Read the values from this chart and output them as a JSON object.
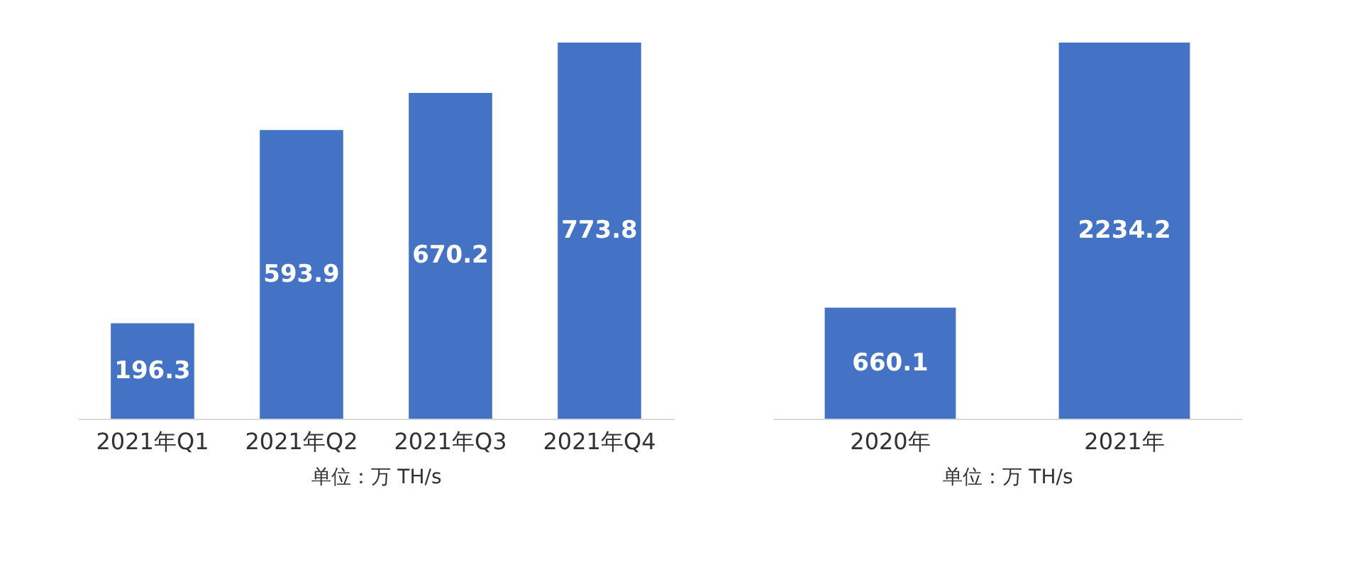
{
  "chart_data": [
    {
      "type": "bar",
      "categories": [
        "2021年Q1",
        "2021年Q2",
        "2021年Q3",
        "2021年Q4"
      ],
      "values": [
        196.3,
        593.9,
        670.2,
        773.8
      ],
      "color": "#4472c4",
      "xlabel": "单位：万 TH/s",
      "data_labels": true,
      "grid": false,
      "tick_labels": "x"
    },
    {
      "type": "bar",
      "categories": [
        "2020年",
        "2021年"
      ],
      "values": [
        660.1,
        2234.2
      ],
      "color": "#4472c4",
      "xlabel": "单位：万 TH/s",
      "data_labels": true,
      "grid": false,
      "tick_labels": "x"
    }
  ]
}
